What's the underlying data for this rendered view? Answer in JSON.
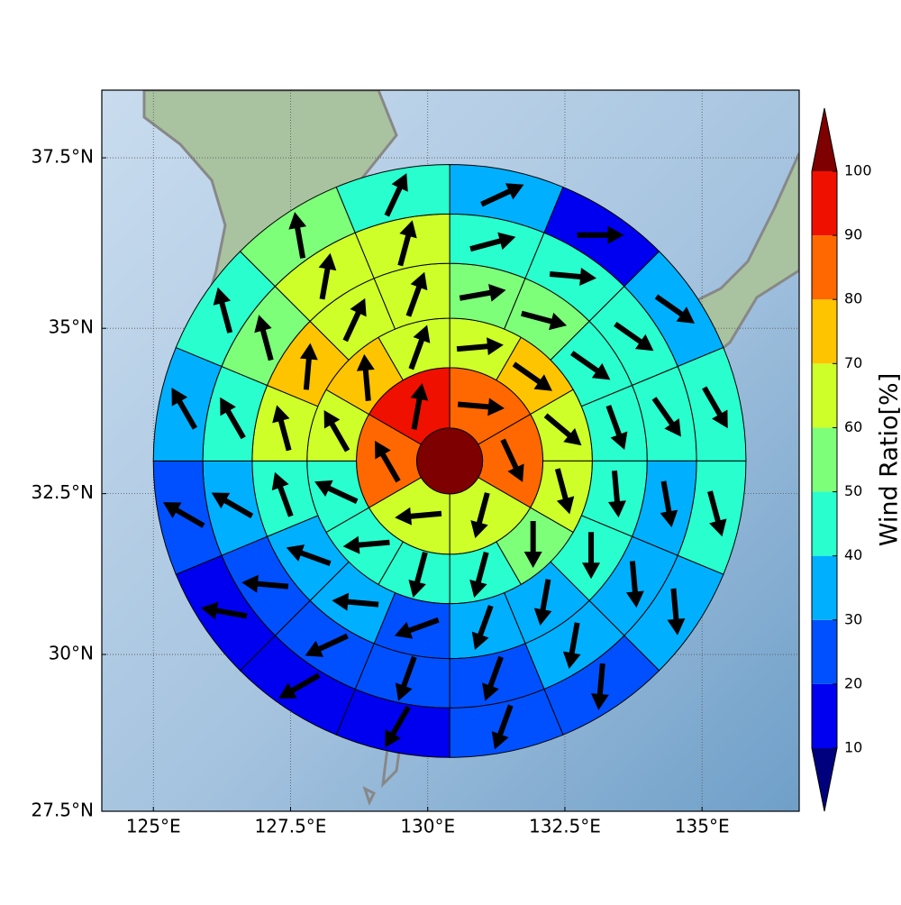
{
  "chart_data": {
    "type": "polar-sector-map",
    "projection": "mercator",
    "xlim": [
      124.06,
      136.77
    ],
    "ylim": [
      27.5,
      38.47
    ],
    "xticks": [
      {
        "value": 125,
        "label": "125°E"
      },
      {
        "value": 127.5,
        "label": "127.5°E"
      },
      {
        "value": 130,
        "label": "130°E"
      },
      {
        "value": 132.5,
        "label": "132.5°E"
      },
      {
        "value": 135,
        "label": "135°E"
      }
    ],
    "yticks": [
      {
        "value": 27.5,
        "label": "27.5°N"
      },
      {
        "value": 30,
        "label": "30°N"
      },
      {
        "value": 32.5,
        "label": "32.5°N"
      },
      {
        "value": 35,
        "label": "35°N"
      },
      {
        "value": 37.5,
        "label": "37.5°N"
      }
    ],
    "grid": true,
    "center": [
      130.4,
      33.0
    ],
    "center_value": 100,
    "rings": [
      {
        "radii": [
          0.6,
          1.7
        ],
        "values": [
          85,
          85,
          65,
          65,
          85,
          95
        ],
        "directions": [
          95,
          155,
          195,
          265,
          330,
          10
        ]
      },
      {
        "radii": [
          1.7,
          2.6
        ],
        "values": [
          65,
          75,
          65,
          65,
          55,
          45,
          45,
          45,
          45,
          65,
          75,
          65
        ],
        "directions": [
          85,
          125,
          130,
          165,
          180,
          195,
          195,
          265,
          295,
          330,
          355,
          20
        ]
      },
      {
        "radii": [
          2.6,
          3.6
        ],
        "values": [
          55,
          55,
          45,
          45,
          45,
          45,
          35,
          35,
          25,
          35,
          35,
          45,
          65,
          75,
          65,
          65
        ],
        "directions": [
          80,
          105,
          125,
          160,
          175,
          180,
          190,
          200,
          250,
          275,
          290,
          340,
          345,
          5,
          25,
          20
        ]
      },
      {
        "radii": [
          3.6,
          4.5
        ],
        "values": [
          45,
          45,
          45,
          45,
          35,
          35,
          35,
          25,
          25,
          25,
          25,
          35,
          45,
          55,
          65,
          65
        ],
        "directions": [
          75,
          95,
          125,
          145,
          170,
          175,
          190,
          200,
          200,
          245,
          275,
          300,
          330,
          345,
          10,
          15
        ]
      },
      {
        "radii": [
          4.5,
          5.4
        ],
        "values": [
          35,
          15,
          35,
          45,
          45,
          35,
          25,
          25,
          15,
          15,
          15,
          25,
          35,
          45,
          55,
          45
        ],
        "directions": [
          65,
          90,
          125,
          150,
          165,
          175,
          185,
          200,
          210,
          240,
          280,
          300,
          330,
          345,
          350,
          25
        ]
      }
    ],
    "colorbar": {
      "label": "Wind Ratio[%]",
      "levels": [
        10,
        20,
        30,
        40,
        50,
        60,
        70,
        80,
        90,
        100
      ],
      "colors": [
        "#00007f",
        "#0000f0",
        "#0050ff",
        "#00b0ff",
        "#29ffce",
        "#7dff7a",
        "#ceff29",
        "#ffc400",
        "#ff6800",
        "#f01000",
        "#7f0000"
      ],
      "extend": "both"
    }
  }
}
